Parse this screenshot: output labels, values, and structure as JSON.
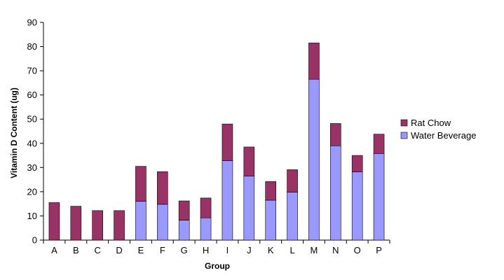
{
  "chart_data": {
    "type": "bar",
    "stacked": true,
    "xlabel": "Group",
    "ylabel": "Vitamin D Content (ug)",
    "ylim": [
      0,
      90
    ],
    "yticks": [
      0,
      10,
      20,
      30,
      40,
      50,
      60,
      70,
      80,
      90
    ],
    "grid": false,
    "legend_position": "right",
    "categories": [
      "A",
      "B",
      "C",
      "D",
      "E",
      "F",
      "G",
      "H",
      "I",
      "J",
      "K",
      "L",
      "M",
      "N",
      "O",
      "P"
    ],
    "series": [
      {
        "name": "Water Beverage",
        "color": "#9999ff",
        "values": [
          0,
          0,
          0,
          0,
          16,
          14.8,
          8.2,
          9.2,
          32.8,
          26.5,
          16.5,
          19.8,
          66.5,
          39,
          28.2,
          35.8
        ]
      },
      {
        "name": "Rat Chow",
        "color": "#993366",
        "values": [
          15.5,
          14,
          12.2,
          12.2,
          14.5,
          13.5,
          8,
          8.2,
          15.2,
          12,
          7.7,
          9.3,
          15,
          9.2,
          6.8,
          8
        ]
      }
    ],
    "legend_order": [
      "Rat Chow",
      "Water Beverage"
    ]
  }
}
